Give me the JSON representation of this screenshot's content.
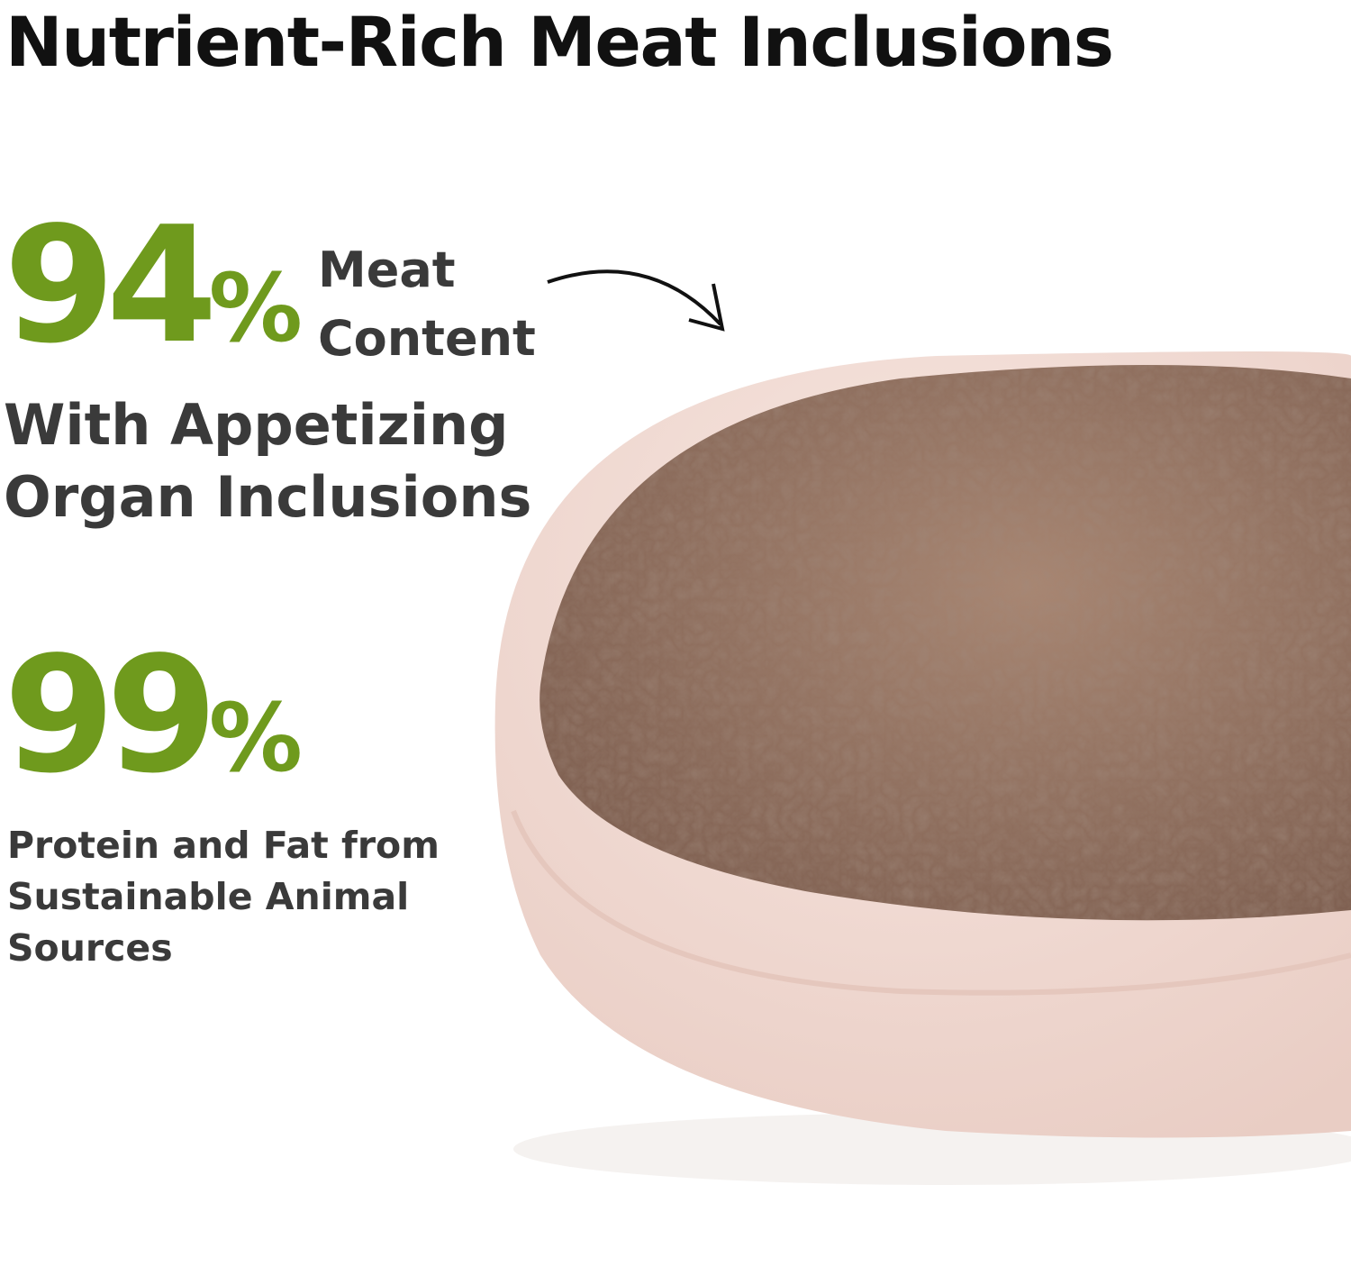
{
  "title": "Nutrient-Rich Meat Inclusions",
  "stat1": {
    "number": "94",
    "unit": "%",
    "label_line1": "Meat",
    "label_line2": "Content",
    "sub_line1": "With Appetizing",
    "sub_line2": "Organ Inclusions"
  },
  "stat2": {
    "number": "99",
    "unit": "%",
    "desc_line1": "Protein and Fat from",
    "desc_line2": "Sustainable Animal",
    "desc_line3": "Sources"
  },
  "colors": {
    "accent": "#6f9a1d",
    "text": "#3a3a3a",
    "bowl": "#f3dcd5",
    "food": "#9b7a66"
  },
  "icons": {
    "arrow": "curved-arrow-icon"
  }
}
